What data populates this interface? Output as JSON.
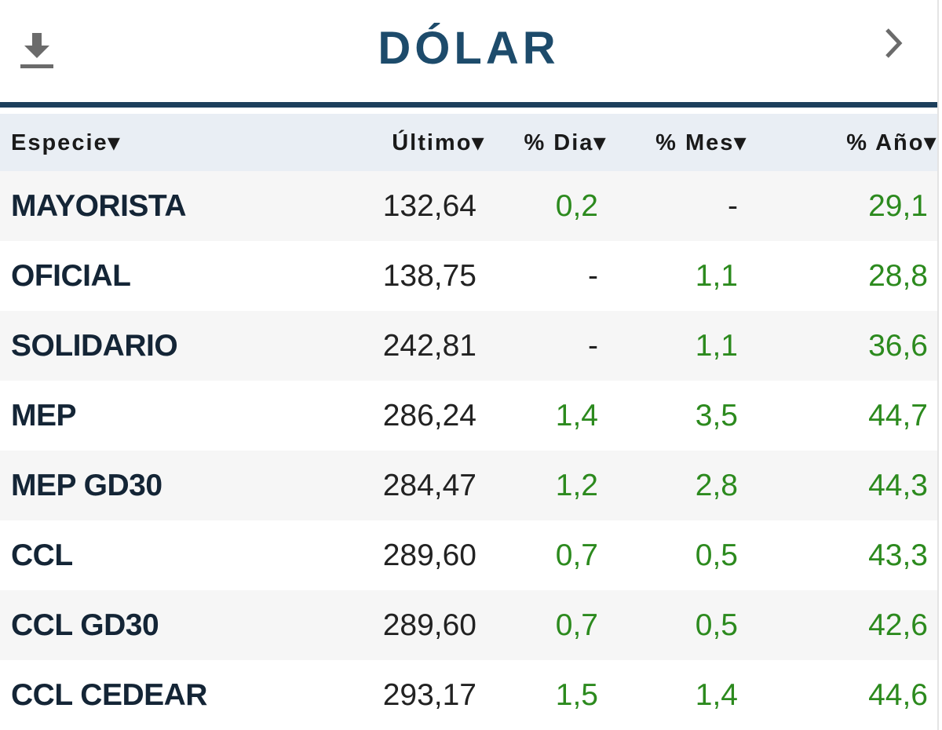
{
  "header": {
    "title": "DÓLAR"
  },
  "table": {
    "columns": [
      "Especie▾",
      "Último▾",
      "% Dia▾",
      "% Mes▾",
      "% Año▾"
    ],
    "rows": [
      [
        "MAYORISTA",
        "132,64",
        "0,2",
        "-",
        "29,1"
      ],
      [
        "OFICIAL",
        "138,75",
        "-",
        "1,1",
        "28,8"
      ],
      [
        "SOLIDARIO",
        "242,81",
        "-",
        "1,1",
        "36,6"
      ],
      [
        "MEP",
        "286,24",
        "1,4",
        "3,5",
        "44,7"
      ],
      [
        "MEP GD30",
        "284,47",
        "1,2",
        "2,8",
        "44,3"
      ],
      [
        "CCL",
        "289,60",
        "0,7",
        "0,5",
        "43,3"
      ],
      [
        "CCL GD30",
        "289,60",
        "0,7",
        "0,5",
        "42,6"
      ],
      [
        "CCL CEDEAR",
        "293,17",
        "1,5",
        "1,4",
        "44,6"
      ]
    ]
  }
}
